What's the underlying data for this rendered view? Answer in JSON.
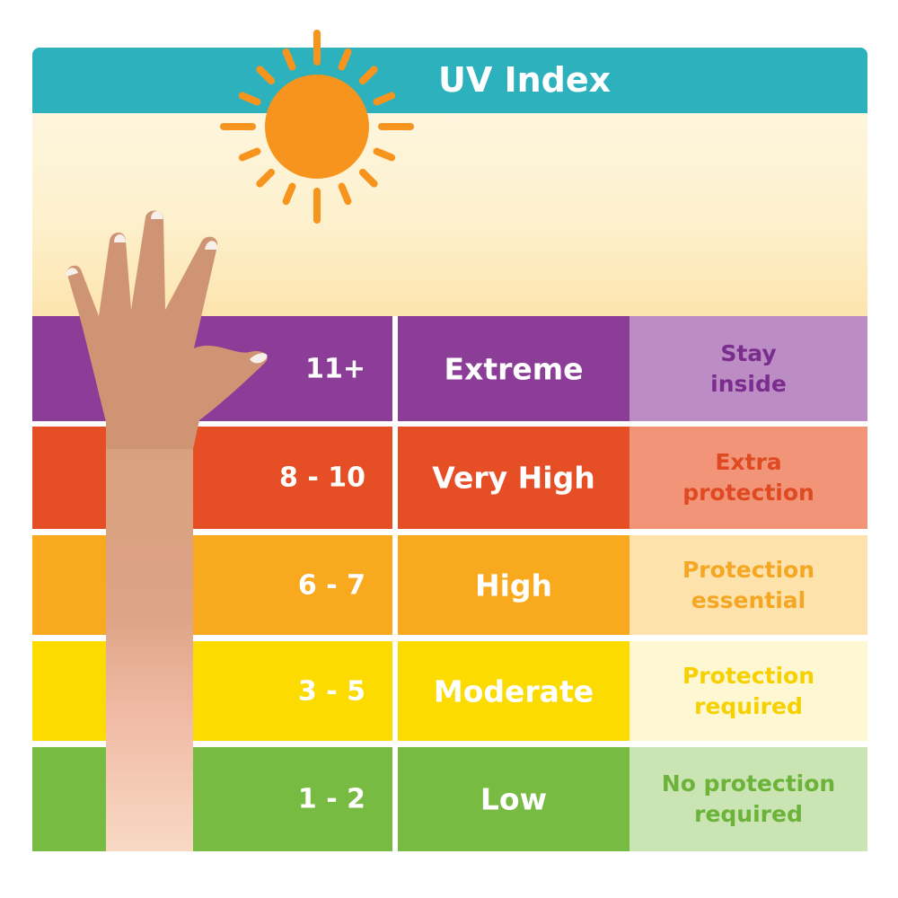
{
  "title": "UV Index",
  "levels": [
    {
      "range": "11+",
      "level": "Extreme",
      "advice": "Stay inside",
      "advice_lines": [
        "Stay",
        "inside"
      ],
      "colors": {
        "band": "#8c3d98",
        "advice_bg": "#bc8dc5",
        "advice_text": "#7b2d8e"
      }
    },
    {
      "range": "8 - 10",
      "level": "Very High",
      "advice": "Extra protection",
      "advice_lines": [
        "Extra",
        "protection"
      ],
      "colors": {
        "band": "#e64f26",
        "advice_bg": "#f19478",
        "advice_text": "#e04a22"
      }
    },
    {
      "range": "6 - 7",
      "level": "High",
      "advice": "Protection essential",
      "advice_lines": [
        "Protection",
        "essential"
      ],
      "colors": {
        "band": "#f8a91e",
        "advice_bg": "#fde3ab",
        "advice_text": "#f5a623"
      }
    },
    {
      "range": "3 - 5",
      "level": "Moderate",
      "advice": "Protection required",
      "advice_lines": [
        "Protection",
        "required"
      ],
      "colors": {
        "band": "#fcdb00",
        "advice_bg": "#fef8d2",
        "advice_text": "#f7d000"
      }
    },
    {
      "range": "1 - 2",
      "level": "Low",
      "advice": "No protection required",
      "advice_lines": [
        "No protection",
        "required"
      ],
      "colors": {
        "band": "#77bb43",
        "advice_bg": "#cbe4b4",
        "advice_text": "#6bb339"
      }
    }
  ],
  "colors": {
    "header": "#2db2bd",
    "sun": "#f7941d",
    "divider": "#ffffff"
  },
  "icons": {
    "sun": "sun-icon",
    "hand": "raised-hand-icon"
  }
}
